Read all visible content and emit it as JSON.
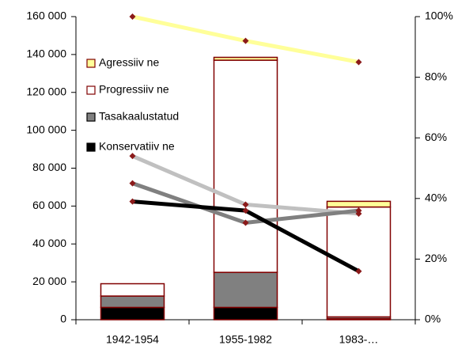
{
  "chart_data": {
    "type": "bar",
    "categories": [
      "1942-1954",
      "1955-1982",
      "1983-…"
    ],
    "series": [
      {
        "name": "Konservatiiv ne",
        "color": "#000000",
        "values": [
          6500,
          6500,
          500
        ]
      },
      {
        "name": "Tasakaalustatud",
        "color": "#808080",
        "values": [
          6000,
          18500,
          1000
        ]
      },
      {
        "name": "Progressiiv ne",
        "color": "#ffffff",
        "values": [
          6500,
          112000,
          58000
        ]
      },
      {
        "name": "Agressiiv ne",
        "color": "#ffff99",
        "values": [
          0,
          1500,
          3000
        ]
      }
    ],
    "bar_outline": "#800000",
    "lines": [
      {
        "color": "#ffff99",
        "axis": "y2",
        "values": [
          100,
          92,
          85
        ]
      },
      {
        "color": "#c0c0c0",
        "axis": "y2",
        "values": [
          54,
          38,
          35
        ]
      },
      {
        "color": "#808080",
        "axis": "y2",
        "values": [
          45,
          32,
          36
        ]
      },
      {
        "color": "#000000",
        "axis": "y2",
        "values": [
          39,
          36,
          16
        ]
      }
    ],
    "marker_color": "#8b1a1a",
    "ylim": [
      0,
      160000
    ],
    "yticks": [
      0,
      {
        "value": 20000,
        "label": "20 000"
      },
      {
        "value": 40000,
        "label": "40 000"
      },
      {
        "value": 60000,
        "label": "60 000"
      },
      {
        "value": 80000,
        "label": "80 000"
      },
      {
        "value": 100000,
        "label": "100 000"
      },
      {
        "value": 120000,
        "label": "120 000"
      },
      {
        "value": 140000,
        "label": "140 000"
      },
      {
        "value": 160000,
        "label": "160 000"
      }
    ],
    "y2lim": [
      0,
      100
    ],
    "y2ticks": [
      {
        "value": 0,
        "label": "0%"
      },
      {
        "value": 20,
        "label": "20%"
      },
      {
        "value": 40,
        "label": "40%"
      },
      {
        "value": 60,
        "label": "60%"
      },
      {
        "value": 80,
        "label": "80%"
      },
      {
        "value": 100,
        "label": "100%"
      }
    ],
    "legend": "top-left"
  }
}
